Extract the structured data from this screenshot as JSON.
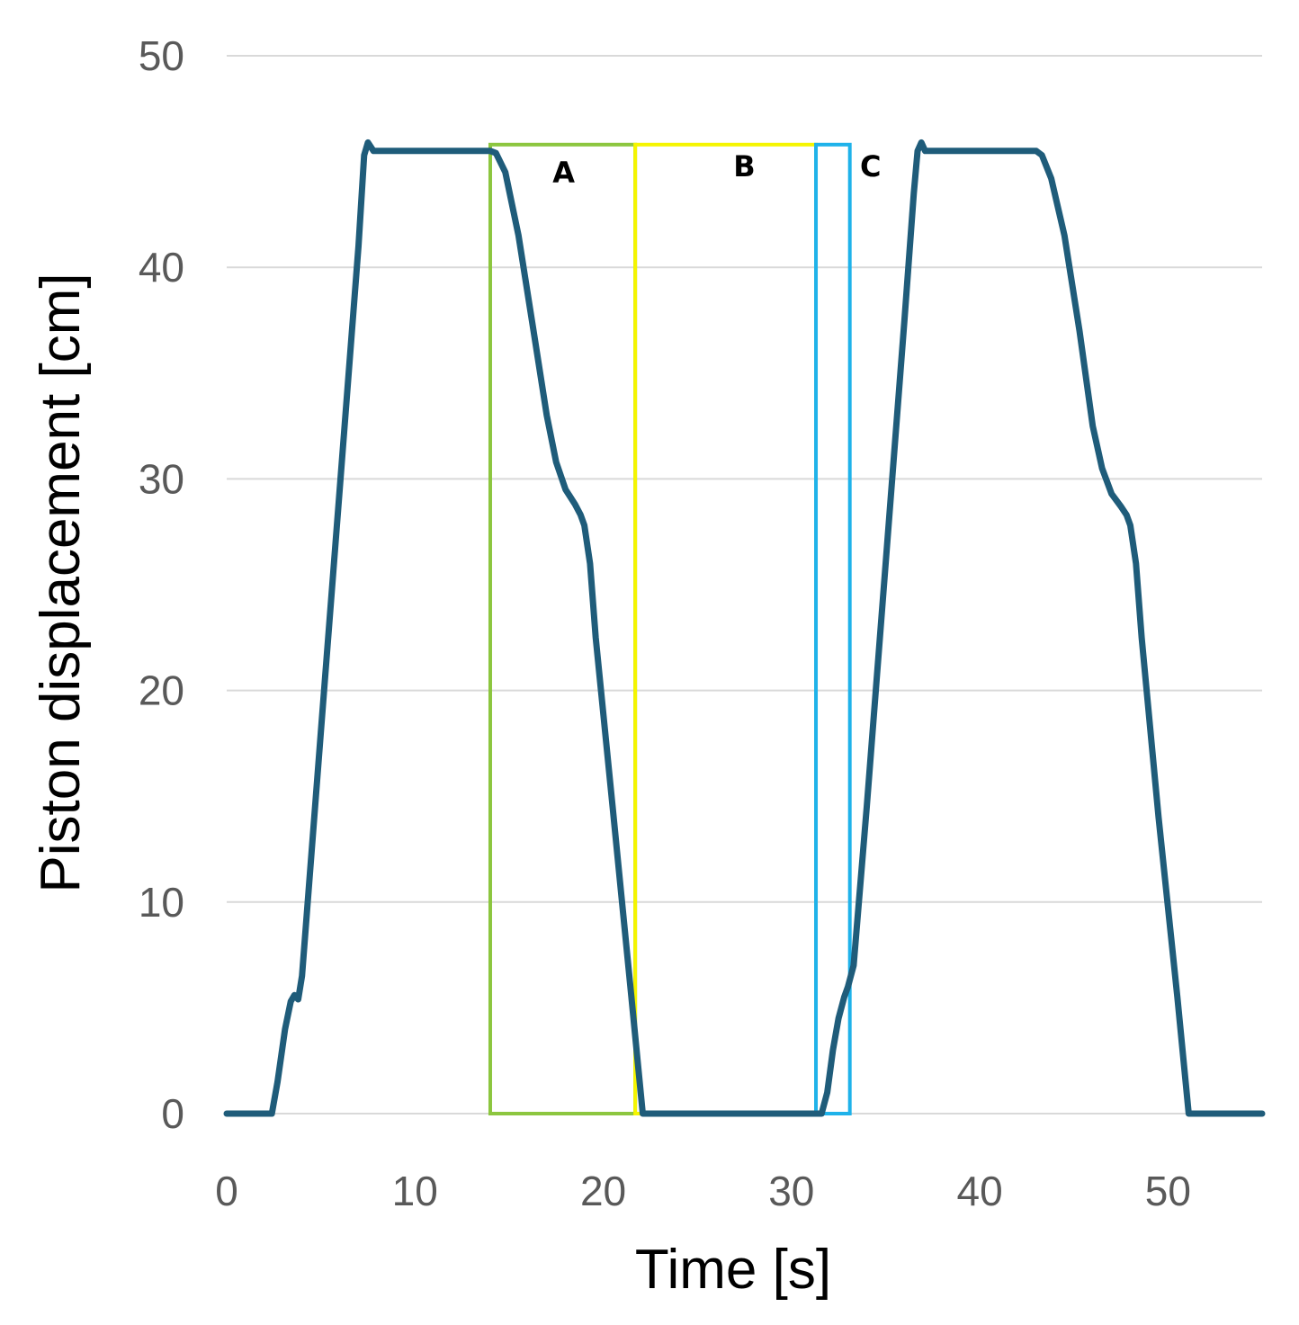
{
  "chart_data": {
    "type": "line",
    "title": "",
    "xlabel": "Time [s]",
    "ylabel": "Piston displacement [cm]",
    "xlim": [
      0,
      55
    ],
    "ylim": [
      0,
      50
    ],
    "x_ticks": [
      0,
      10,
      20,
      30,
      40,
      50
    ],
    "y_ticks": [
      0,
      10,
      20,
      30,
      40,
      50
    ],
    "grid": "horizontal",
    "series": [
      {
        "color": "#1f5c7a",
        "points": [
          [
            0,
            0
          ],
          [
            2.4,
            0
          ],
          [
            2.7,
            1.5
          ],
          [
            3.1,
            4.0
          ],
          [
            3.4,
            5.3
          ],
          [
            3.6,
            5.6
          ],
          [
            3.8,
            5.4
          ],
          [
            4.0,
            6.5
          ],
          [
            5.0,
            18.0
          ],
          [
            6.0,
            29.5
          ],
          [
            7.0,
            41.0
          ],
          [
            7.3,
            45.3
          ],
          [
            7.5,
            45.9
          ],
          [
            7.8,
            45.5
          ],
          [
            10,
            45.5
          ],
          [
            12,
            45.5
          ],
          [
            14,
            45.5
          ],
          [
            14.3,
            45.4
          ],
          [
            14.8,
            44.5
          ],
          [
            15.5,
            41.5
          ],
          [
            16.3,
            37.0
          ],
          [
            17.0,
            33.0
          ],
          [
            17.5,
            30.8
          ],
          [
            18.0,
            29.5
          ],
          [
            18.5,
            28.8
          ],
          [
            18.8,
            28.3
          ],
          [
            19.0,
            27.8
          ],
          [
            19.3,
            26.0
          ],
          [
            19.6,
            22.5
          ],
          [
            20.5,
            14.5
          ],
          [
            21.5,
            5.5
          ],
          [
            22.1,
            0
          ],
          [
            25,
            0
          ],
          [
            30,
            0
          ],
          [
            31.6,
            0
          ],
          [
            31.9,
            1.0
          ],
          [
            32.2,
            3.0
          ],
          [
            32.5,
            4.5
          ],
          [
            32.8,
            5.5
          ],
          [
            33.0,
            6.0
          ],
          [
            33.3,
            7.0
          ],
          [
            34.0,
            14.5
          ],
          [
            35.0,
            26.0
          ],
          [
            36.0,
            37.5
          ],
          [
            36.5,
            43.5
          ],
          [
            36.7,
            45.5
          ],
          [
            36.9,
            45.9
          ],
          [
            37.1,
            45.5
          ],
          [
            40,
            45.5
          ],
          [
            43.0,
            45.5
          ],
          [
            43.3,
            45.3
          ],
          [
            43.8,
            44.2
          ],
          [
            44.5,
            41.5
          ],
          [
            45.3,
            37.0
          ],
          [
            46.0,
            32.5
          ],
          [
            46.5,
            30.5
          ],
          [
            47.0,
            29.3
          ],
          [
            47.5,
            28.7
          ],
          [
            47.8,
            28.3
          ],
          [
            48.0,
            27.8
          ],
          [
            48.3,
            26.0
          ],
          [
            48.6,
            22.5
          ],
          [
            49.5,
            14.0
          ],
          [
            50.5,
            5.5
          ],
          [
            51.1,
            0
          ],
          [
            55,
            0
          ]
        ]
      }
    ],
    "annotations": [
      {
        "label": "A",
        "color": "#8cc63f",
        "x_range": [
          14.0,
          21.7
        ],
        "y_range": [
          0,
          45.8
        ],
        "label_at": [
          17.9,
          44.0
        ]
      },
      {
        "label": "B",
        "color": "#f5f500",
        "x_range": [
          21.7,
          31.3
        ],
        "y_range": [
          0,
          45.8
        ],
        "label_at": [
          27.5,
          44.3
        ]
      },
      {
        "label": "C",
        "color": "#1fb2ea",
        "x_range": [
          31.3,
          33.1
        ],
        "y_range": [
          0,
          45.8
        ],
        "label_at": [
          34.2,
          44.3
        ]
      }
    ]
  }
}
